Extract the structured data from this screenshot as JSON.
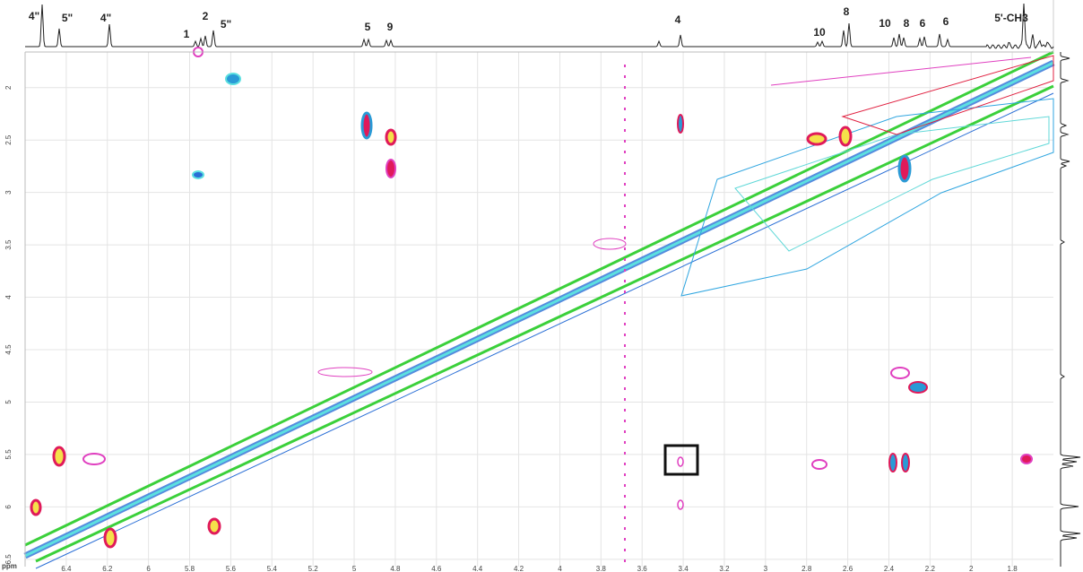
{
  "spectrum": {
    "peak_labels": [
      "4\"",
      "5\"",
      "4\"",
      "1",
      "2",
      "5\"",
      "5",
      "9",
      "4",
      "10",
      "8",
      "10",
      "8",
      "6",
      "6",
      "5'-CH3"
    ],
    "x_label": "ppm",
    "xlim": [
      6.6,
      1.6
    ],
    "xticks": [
      6.4,
      6.2,
      6.0,
      5.8,
      5.6,
      5.4,
      5.2,
      5.0,
      4.8,
      4.6,
      4.4,
      4.2,
      4.0,
      3.8,
      3.6,
      3.4,
      3.2,
      3.0,
      2.8,
      2.6,
      2.4,
      2.2,
      2.0,
      1.8
    ],
    "ylim": [
      1.66,
      6.57
    ],
    "yticks": [
      2,
      2.5,
      3,
      3.5,
      4,
      4.5,
      5,
      5.5,
      6,
      6.5
    ]
  }
}
